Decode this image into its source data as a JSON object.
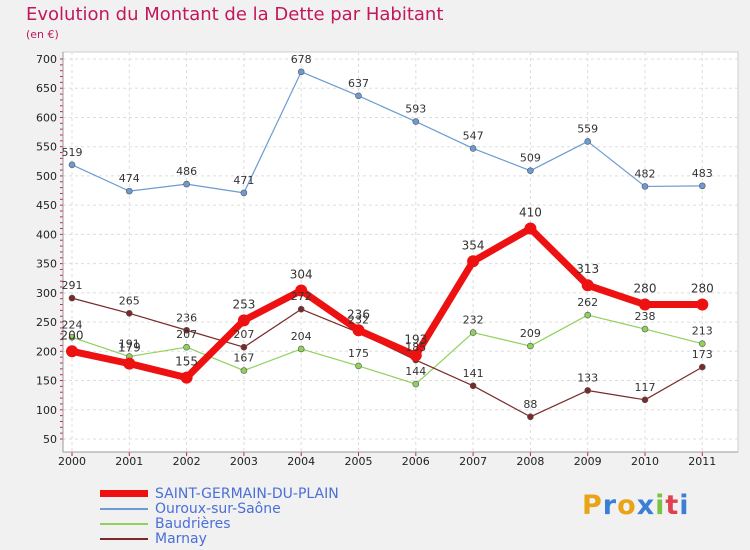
{
  "header": {
    "title": "Evolution du Montant de la Dette par Habitant",
    "unit": "(en €)"
  },
  "logo": {
    "text": "Proxiti",
    "colors": [
      "#e8a317",
      "#3a7fd5",
      "#e8a317",
      "#3a7fd5",
      "#7cc242",
      "#e04050",
      "#3a7fd5"
    ]
  },
  "chart_data": {
    "type": "line",
    "x": [
      "2000",
      "2001",
      "2002",
      "2003",
      "2004",
      "2005",
      "2006",
      "2007",
      "2008",
      "2009",
      "2010",
      "2011"
    ],
    "y_ticks": [
      "50",
      "100",
      "150",
      "200",
      "250",
      "300",
      "350",
      "400",
      "450",
      "500",
      "550",
      "600",
      "650",
      "700"
    ],
    "ylim": [
      50,
      700
    ],
    "grid": true,
    "legend_position": "bottom-left",
    "series": [
      {
        "name": "SAINT-GERMAIN-DU-PLAIN",
        "color": "#ee1111",
        "width": 7,
        "values": [
          200,
          179,
          155,
          253,
          304,
          236,
          193,
          354,
          410,
          313,
          280,
          280
        ],
        "labels": [
          "200",
          "179",
          "155",
          "253",
          "304",
          "236",
          "193",
          "354",
          "410",
          "313",
          "280",
          "280"
        ]
      },
      {
        "name": "Ouroux-sur-Saône",
        "color": "#6b9bd2",
        "width": 1.2,
        "values": [
          519,
          474,
          486,
          471,
          678,
          637,
          593,
          547,
          509,
          559,
          482,
          483
        ],
        "labels": [
          "519",
          "474",
          "486",
          "471",
          "678",
          "637",
          "593",
          "547",
          "509",
          "559",
          "482",
          "483"
        ]
      },
      {
        "name": "Baudrières",
        "color": "#8fd15a",
        "width": 1.2,
        "values": [
          224,
          191,
          207,
          167,
          204,
          175,
          144,
          232,
          209,
          262,
          238,
          213
        ],
        "labels": [
          "224",
          "191",
          "207",
          "167",
          "204",
          "175",
          "144",
          "232",
          "209",
          "262",
          "238",
          "213"
        ]
      },
      {
        "name": "Marnay",
        "color": "#7a2a2a",
        "width": 1.2,
        "values": [
          291,
          265,
          236,
          207,
          272,
          232,
          185,
          141,
          88,
          133,
          117,
          173
        ],
        "labels": [
          "291",
          "265",
          "236",
          "207",
          "272",
          "232",
          "185",
          "141",
          "88",
          "133",
          "117",
          "173"
        ]
      }
    ]
  }
}
